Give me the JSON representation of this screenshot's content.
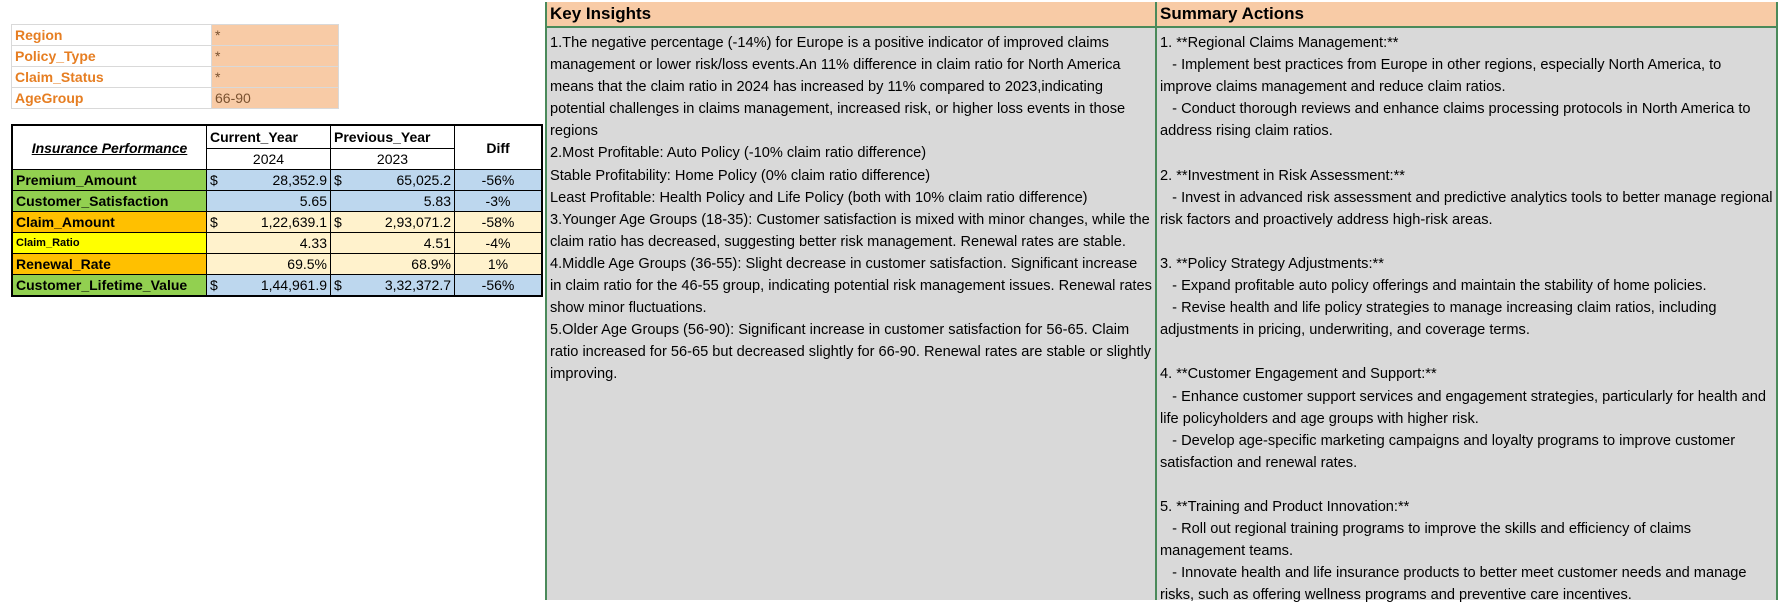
{
  "filters": [
    {
      "label": "Region",
      "value": "*"
    },
    {
      "label": "Policy_Type",
      "value": "*"
    },
    {
      "label": "Claim_Status",
      "value": "*"
    },
    {
      "label": "AgeGroup",
      "value": "66-90"
    }
  ],
  "performance": {
    "title": "Insurance Performance",
    "col_current": "Current_Year",
    "col_current_year": "2024",
    "col_previous": "Previous_Year",
    "col_previous_year": "2023",
    "col_diff": "Diff",
    "rows": [
      {
        "metric": "Premium_Amount",
        "cur_symbol": "$",
        "current": "28,352.9",
        "prev_symbol": "$",
        "previous": "65,025.2",
        "diff": "-56%"
      },
      {
        "metric": "Customer_Satisfaction",
        "cur_symbol": "",
        "current": "5.65",
        "prev_symbol": "",
        "previous": "5.83",
        "diff": "-3%"
      },
      {
        "metric": "Claim_Amount",
        "cur_symbol": "$",
        "current": "1,22,639.1",
        "prev_symbol": "$",
        "previous": "2,93,071.2",
        "diff": "-58%"
      },
      {
        "metric": "Claim_Ratio",
        "cur_symbol": "",
        "current": "4.33",
        "prev_symbol": "",
        "previous": "4.51",
        "diff": "-4%"
      },
      {
        "metric": "Renewal_Rate",
        "cur_symbol": "",
        "current": "69.5%",
        "prev_symbol": "",
        "previous": "68.9%",
        "diff": "1%"
      },
      {
        "metric": "Customer_Lifetime_Value",
        "cur_symbol": "$",
        "current": "1,44,961.9",
        "prev_symbol": "$",
        "previous": "3,32,372.7",
        "diff": "-56%"
      }
    ]
  },
  "insights": {
    "heading": "Key Insights",
    "text": "1.The negative percentage (-14%) for Europe is a positive indicator of improved claims management or lower risk/loss events.An 11% difference in claim ratio for North America means that the claim ratio in 2024 has increased by 11% compared to 2023,indicating potential challenges in claims management, increased risk, or higher loss events in those regions\n2.Most Profitable: Auto Policy (-10% claim ratio difference)\nStable Profitability: Home Policy (0% claim ratio difference)\nLeast Profitable: Health Policy and Life Policy (both with 10% claim ratio difference)\n3.Younger Age Groups (18-35): Customer satisfaction is mixed with minor changes, while the claim ratio has decreased, suggesting better risk management. Renewal rates are stable.\n4.Middle Age Groups (36-55): Slight decrease in customer satisfaction. Significant increase in claim ratio for the 46-55 group, indicating potential risk management issues. Renewal rates show minor fluctuations.\n5.Older Age Groups (56-90): Significant increase in customer satisfaction for 56-65. Claim ratio increased for 56-65 but decreased slightly for 66-90. Renewal rates are stable or slightly improving."
  },
  "actions": {
    "heading": "Summary Actions",
    "text": "1. **Regional Claims Management:**\n   - Implement best practices from Europe in other regions, especially North America, to improve claims management and reduce claim ratios.\n   - Conduct thorough reviews and enhance claims processing protocols in North America to address rising claim ratios.\n\n2. **Investment in Risk Assessment:**\n   - Invest in advanced risk assessment and predictive analytics tools to better manage regional risk factors and proactively address high-risk areas.\n\n3. **Policy Strategy Adjustments:**\n   - Expand profitable auto policy offerings and maintain the stability of home policies.\n   - Revise health and life policy strategies to manage increasing claim ratios, including adjustments in pricing, underwriting, and coverage terms.\n\n4. **Customer Engagement and Support:**\n   - Enhance customer support services and engagement strategies, particularly for health and life policyholders and age groups with higher risk.\n   - Develop age-specific marketing campaigns and loyalty programs to improve customer satisfaction and renewal rates.\n\n5. **Training and Product Innovation:**\n   - Roll out regional training programs to improve the skills and efficiency of claims management teams.\n   - Innovate health and life insurance products to better meet customer needs and manage risks, such as offering wellness programs and preventive care incentives."
  }
}
